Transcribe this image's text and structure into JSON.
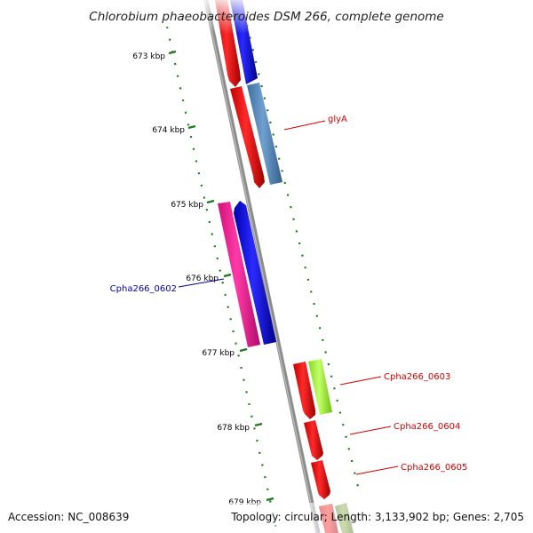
{
  "title": "Chlorobium phaeobacteroides DSM 266, complete genome",
  "footer": {
    "accession": "Accession: NC_008639",
    "topology": "Topology: circular; Length: 3,133,902 bp; Genes: 2,705"
  },
  "ticks": [
    {
      "label": "673 kbp"
    },
    {
      "label": "674 kbp"
    },
    {
      "label": "675 kbp"
    },
    {
      "label": "676 kbp"
    },
    {
      "label": "677 kbp"
    },
    {
      "label": "678 kbp"
    },
    {
      "label": "679 kbp"
    }
  ],
  "gene_labels": [
    {
      "text": "glyA",
      "color": "#d40000"
    },
    {
      "text": "Cpha266_0602",
      "color": "#0000a0"
    },
    {
      "text": "Cpha266_0603",
      "color": "#d40000"
    },
    {
      "text": "Cpha266_0604",
      "color": "#d40000"
    },
    {
      "text": "Cpha266_0605",
      "color": "#d40000"
    }
  ],
  "colors": {
    "backbone": "#8c8c8c",
    "tick": "#1e7a1e",
    "red": "#ff0000",
    "blue": "#0000ff",
    "steelblue": "#5b8fbf",
    "magenta": "#ff1493",
    "lime": "#a8ff3c",
    "olive": "#7a9a3c"
  }
}
